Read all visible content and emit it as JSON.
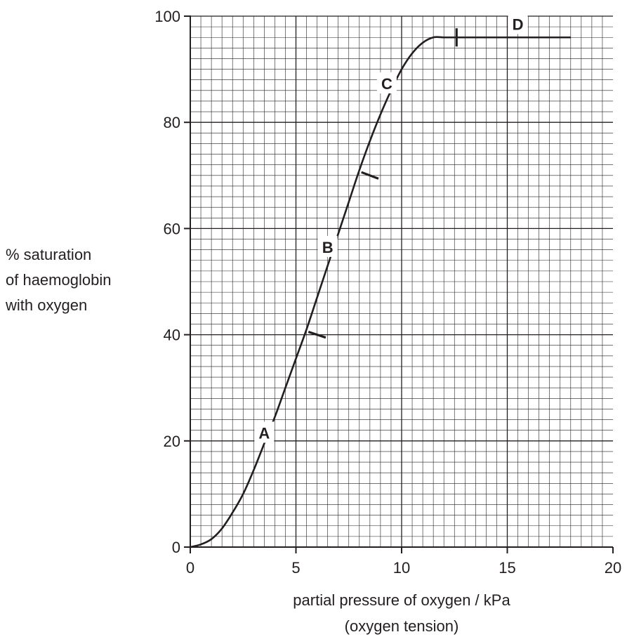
{
  "chart_data": {
    "type": "line",
    "title": "",
    "xlabel_lines": [
      "partial pressure of oxygen / kPa",
      "(oxygen tension)"
    ],
    "ylabel_lines": [
      "% saturation",
      "of haemoglobin",
      "with oxygen"
    ],
    "xlim": [
      0,
      20
    ],
    "ylim": [
      0,
      100
    ],
    "x_ticks": [
      0,
      5,
      10,
      15,
      20
    ],
    "y_ticks": [
      0,
      20,
      40,
      60,
      80,
      100
    ],
    "x_tick_labels": [
      "0",
      "5",
      "10",
      "15",
      "20"
    ],
    "y_tick_labels": [
      "0",
      "20",
      "40",
      "60",
      "80",
      "100"
    ],
    "grid": true,
    "grid_minor_step": {
      "x": 0.5,
      "y": 2
    },
    "grid_major_step": {
      "x": 5,
      "y": 20
    },
    "legend": "none",
    "line_color": "#231f20",
    "grid_color": "#231f20",
    "series": [
      {
        "x": [
          0,
          0.5,
          1,
          1.5,
          2,
          2.5,
          3,
          3.5,
          4,
          4.5,
          5,
          5.5,
          6,
          6.5,
          7,
          7.5,
          8,
          8.5,
          9,
          9.5,
          10,
          10.5,
          11,
          11.5,
          12,
          12.5,
          13,
          14,
          15,
          16,
          17,
          18
        ],
        "y": [
          0,
          0.5,
          1.5,
          3.5,
          6.5,
          10,
          14.5,
          19.5,
          24.5,
          30,
          35.5,
          41,
          47,
          53,
          59,
          65,
          71,
          76.5,
          81.5,
          86,
          90,
          93,
          95,
          96,
          96,
          96,
          96,
          96,
          96,
          96,
          96,
          96
        ]
      }
    ],
    "tick_marks": [
      {
        "x": 6.0,
        "y": 40
      },
      {
        "x": 8.5,
        "y": 70
      },
      {
        "x": 12.6,
        "y": 96
      }
    ],
    "annotations": [
      {
        "text": "A",
        "x": 3.5,
        "y": 21.5
      },
      {
        "text": "B",
        "x": 6.5,
        "y": 56.5
      },
      {
        "text": "C",
        "x": 9.3,
        "y": 87.3
      },
      {
        "text": "D",
        "x": 15.5,
        "y": 98.5
      }
    ]
  }
}
